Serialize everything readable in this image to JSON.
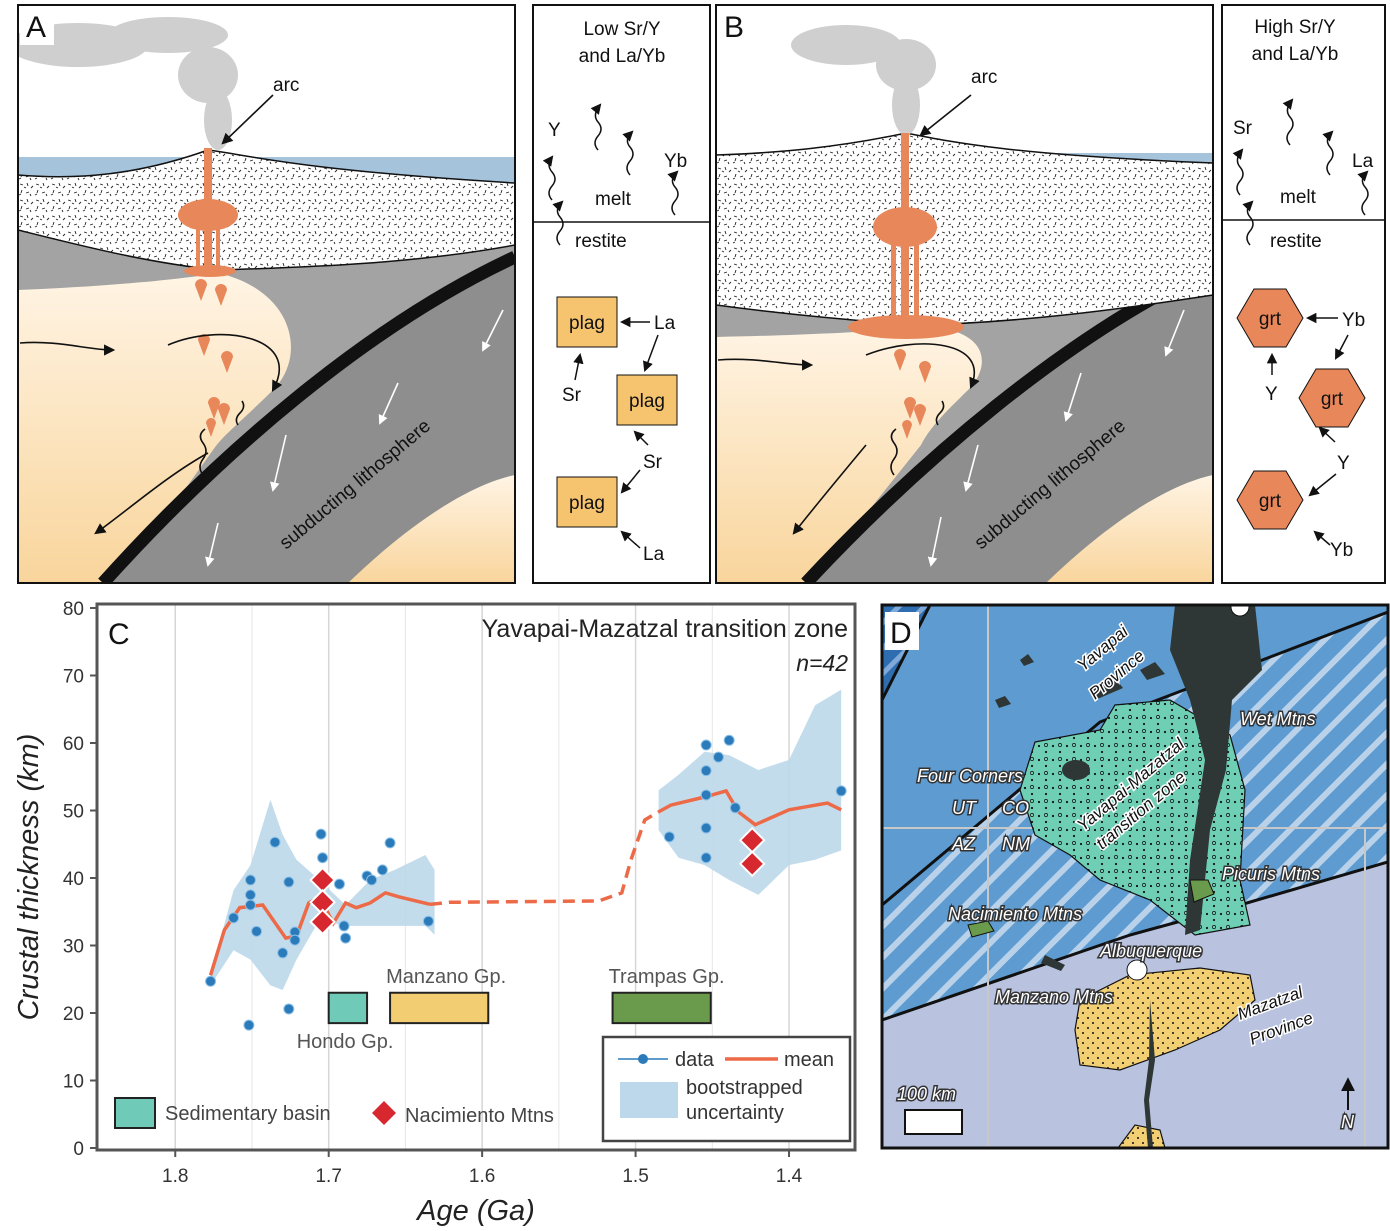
{
  "panel_a": {
    "label": "A",
    "arc": "arc",
    "slab": "subducting lithosphere"
  },
  "inset_a": {
    "title": [
      "Low Sr/Y",
      "and La/Yb"
    ],
    "melt": "melt",
    "restite": "restite",
    "mineral": "plag",
    "trace_elements": [
      "Y",
      "Yb",
      "La",
      "Sr",
      "Sr",
      "La"
    ]
  },
  "panel_b": {
    "label": "B",
    "arc": "arc",
    "slab": "subducting lithosphere"
  },
  "inset_b": {
    "title": [
      "High Sr/Y",
      "and La/Yb"
    ],
    "melt": "melt",
    "restite": "restite",
    "mineral": "grt",
    "trace_elements": [
      "Sr",
      "La",
      "Yb",
      "Y",
      "Y",
      "Yb"
    ]
  },
  "panel_d": {
    "label": "D",
    "places": [
      "Yavapai",
      "Province",
      "Wet Mtns",
      "Four Corners",
      "UT",
      "CO",
      "AZ",
      "NM",
      "Yavapai-Mazatzal",
      "transition zone",
      "Picuris Mtns",
      "Nacimiento Mtns",
      "Albuquerque",
      "Manzano Mtns",
      "Mazatzal",
      "Province"
    ],
    "scale": "100 km",
    "north": "N"
  },
  "chart_data": {
    "type": "scatter",
    "panel_label": "C",
    "title": "Yavapai-Mazatzal transition zone",
    "annotation": "n=42",
    "x_label": "Age (Ga)",
    "y_label": "Crustal thickness (km)",
    "xlim": [
      1.851,
      1.357
    ],
    "ylim": [
      0,
      80
    ],
    "xticks": [
      1.8,
      1.7,
      1.6,
      1.5,
      1.4
    ],
    "xgrid_minor": [
      1.75,
      1.65,
      1.55,
      1.45
    ],
    "yticks": [
      0,
      10,
      20,
      30,
      40,
      50,
      60,
      70,
      80
    ],
    "grid": true,
    "series": [
      {
        "name": "data",
        "color": "#2b7bba",
        "x": [
          1.777,
          1.762,
          1.752,
          1.751,
          1.751,
          1.751,
          1.747,
          1.735,
          1.73,
          1.726,
          1.726,
          1.722,
          1.722,
          1.705,
          1.704,
          1.693,
          1.69,
          1.689,
          1.675,
          1.672,
          1.665,
          1.66,
          1.635,
          1.478,
          1.454,
          1.446,
          1.439,
          1.454,
          1.454,
          1.454,
          1.454,
          1.435,
          1.366
        ],
        "values": [
          24.7,
          34.1,
          18.2,
          39.7,
          37.5,
          36.0,
          32.1,
          45.3,
          28.9,
          39.4,
          20.6,
          32.0,
          30.8,
          46.5,
          43.0,
          39.1,
          32.9,
          31.1,
          40.3,
          39.7,
          41.2,
          45.2,
          33.6,
          46.1,
          59.7,
          57.9,
          60.4,
          55.9,
          52.3,
          47.4,
          43.0,
          50.4,
          52.9
        ]
      },
      {
        "name": "Nacimiento Mtns",
        "color": "#d7282f",
        "x": [
          1.704,
          1.704,
          1.704,
          1.424,
          1.424
        ],
        "values": [
          39.7,
          36.4,
          33.5,
          45.6,
          42.1
        ]
      },
      {
        "name": "mean",
        "color": "#ec6a47",
        "x": [
          1.777,
          1.768,
          1.758,
          1.743,
          1.728,
          1.721,
          1.713,
          1.706,
          1.697,
          1.689,
          1.682,
          1.673,
          1.663,
          1.654,
          1.634,
          null,
          1.485,
          1.477,
          1.455,
          1.441,
          1.433,
          1.422,
          1.4,
          1.375,
          1.366
        ],
        "values": [
          25.6,
          32.3,
          35.6,
          36.0,
          31.1,
          31.4,
          36.3,
          37.2,
          33.3,
          36.3,
          35.6,
          36.3,
          37.8,
          37.2,
          36.1,
          null,
          49.8,
          50.8,
          52.0,
          52.9,
          49.8,
          47.9,
          50.1,
          51.1,
          50.1
        ]
      }
    ],
    "mean_interpolated": {
      "color": "#ec6a47",
      "x": [
        1.634,
        1.621,
        1.524,
        1.509,
        1.503,
        1.494,
        1.485
      ],
      "values": [
        36.1,
        36.4,
        36.6,
        37.8,
        42.7,
        48.6,
        49.8
      ]
    },
    "uncertainty": {
      "name": "bootstrapped uncertainty",
      "color": "#bcd8ea",
      "segments": [
        {
          "x": [
            1.777,
            1.762,
            1.751,
            1.738,
            1.73,
            1.721,
            1.706,
            1.689,
            1.673,
            1.657,
            1.637,
            1.631
          ],
          "upper": [
            25.6,
            38.2,
            41.9,
            51.6,
            46.4,
            42.7,
            39.7,
            36.0,
            39.7,
            41.2,
            43.4,
            41.2
          ],
          "lower": [
            24.1,
            29.3,
            27.9,
            24.1,
            23.4,
            27.9,
            33.8,
            32.9,
            32.9,
            32.9,
            32.9,
            31.6
          ]
        },
        {
          "x": [
            1.485,
            1.472,
            1.455,
            1.439,
            1.42,
            1.4,
            1.383,
            1.366
          ],
          "upper": [
            53.0,
            55.3,
            58.7,
            58.2,
            56.0,
            57.5,
            65.6,
            67.9
          ],
          "lower": [
            47.1,
            43.0,
            41.9,
            39.7,
            37.5,
            41.9,
            42.7,
            44.1
          ]
        }
      ]
    },
    "basins": {
      "name": "Sedimentary basin",
      "color": "#6fcbb7",
      "items": [
        {
          "name": "Hondo Gp.",
          "color": "#6fcbb7",
          "x": [
            1.7,
            1.675
          ],
          "values": [
            18.5,
            23
          ]
        },
        {
          "name": "Manzano Gp.",
          "color": "#f2cd72",
          "x": [
            1.66,
            1.596
          ],
          "values": [
            18.5,
            23
          ]
        },
        {
          "name": "Trampas Gp.",
          "color": "#6a9a4b",
          "x": [
            1.515,
            1.451
          ],
          "values": [
            18.5,
            23
          ]
        }
      ]
    }
  }
}
